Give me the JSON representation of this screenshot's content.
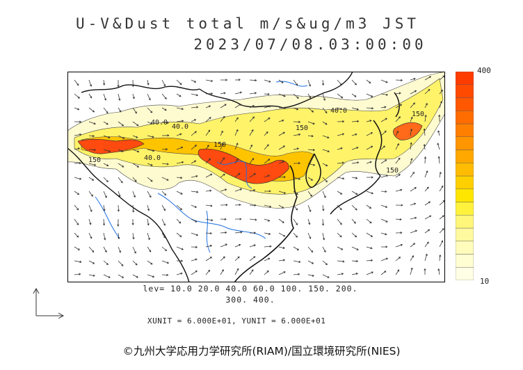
{
  "title": {
    "line1": "U-V&Dust total m/s&ug/m3 JST",
    "line2": "2023/07/08.03:00:00"
  },
  "colorbar": {
    "max_label": "400",
    "min_label": "10",
    "colors": [
      "#ffffe6",
      "#fffed2",
      "#fffcbc",
      "#fff9a0",
      "#fff67a",
      "#fff23c",
      "#ffe600",
      "#ffd000",
      "#ffbc00",
      "#ffa800",
      "#ff9600",
      "#ff8000",
      "#ff6c00",
      "#ff5800",
      "#ff4a00",
      "#ff3c00"
    ]
  },
  "contour_labels": [
    "40.0",
    "150",
    "150",
    "40.0",
    "150",
    "40.0",
    "150",
    "150",
    "40.0"
  ],
  "levels": {
    "line1": "lev= 10.0 20.0 40.0 60.0 100. 150. 200.",
    "line2": "300. 400."
  },
  "units": "XUNIT = 6.000E+01, YUNIT = 6.000E+01",
  "credit": "©九州大学応用力学研究所(RIAM)/国立環境研究所(NIES)",
  "colors": {
    "frame": "#000000",
    "coast": "#111111",
    "river": "#1e6fe0",
    "dust_high": "#ff4a10"
  }
}
